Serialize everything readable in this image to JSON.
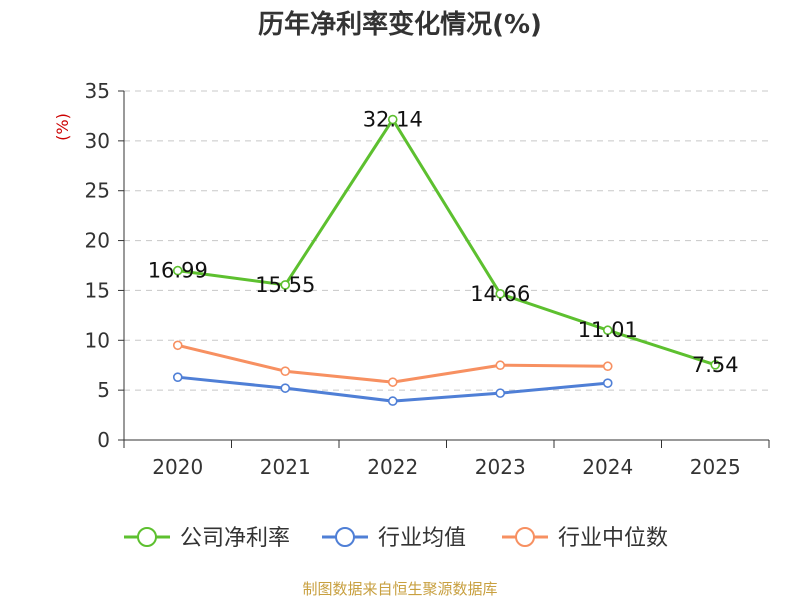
{
  "chart_data": {
    "type": "line",
    "title": "历年净利率变化情况(%)",
    "ylabel": "(%)",
    "categories": [
      "2020",
      "2021",
      "2022",
      "2023",
      "2024",
      "2025"
    ],
    "ylim": [
      0,
      35
    ],
    "yticks": [
      0,
      5,
      10,
      15,
      20,
      25,
      30,
      35
    ],
    "grid": true,
    "legend_position": "bottom",
    "series": [
      {
        "name": "公司净利率",
        "color": "#5dc02f",
        "values": [
          16.99,
          15.55,
          32.14,
          14.66,
          11.01,
          7.54
        ],
        "labels": [
          "16.99",
          "15.55",
          "32.14",
          "14.66",
          "11.01",
          "7.54"
        ]
      },
      {
        "name": "行业均值",
        "color": "#4f7fd6",
        "values": [
          6.3,
          5.2,
          3.9,
          4.7,
          5.7,
          null
        ]
      },
      {
        "name": "行业中位数",
        "color": "#f79061",
        "values": [
          9.5,
          6.9,
          5.8,
          7.5,
          7.4,
          null
        ]
      }
    ]
  },
  "footer": {
    "source": "制图数据来自恒生聚源数据库"
  }
}
